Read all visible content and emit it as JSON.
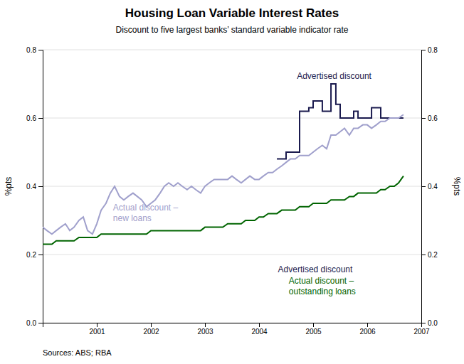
{
  "chart_data": {
    "type": "line",
    "title": "Housing Loan Variable Interest Rates",
    "subtitle": "Discount to five largest banks’ standard variable indicator rate",
    "ylabel": "%pts",
    "y2label": "%pts",
    "source": "Sources: ABS; RBA",
    "xlim": [
      2000.0,
      2007.0
    ],
    "xticks": [
      2001,
      2002,
      2003,
      2004,
      2005,
      2006,
      2007
    ],
    "ylim": [
      0.0,
      0.8
    ],
    "yticks": [
      {
        "value": 0.0,
        "label": "0.0"
      },
      0.2,
      0.4,
      0.6,
      0.8
    ],
    "y2lim": [
      0.0,
      0.8
    ],
    "y2ticks": [
      {
        "value": 0.0,
        "label": "0.0"
      },
      0.2,
      0.4,
      0.6,
      0.8
    ],
    "grid": true,
    "legend": false,
    "series": [
      {
        "name": "Advertised discount",
        "color": "#1a1a4e",
        "x": [
          2004.33,
          2004.5,
          2004.5,
          2004.75,
          2004.75,
          2004.92,
          2004.92,
          2005.0,
          2005.0,
          2005.17,
          2005.17,
          2005.33,
          2005.33,
          2005.42,
          2005.42,
          2005.5,
          2005.5,
          2005.67,
          2005.67,
          2005.75,
          2005.75,
          2005.83,
          2005.83,
          2005.92,
          2005.92,
          2006.08,
          2006.08,
          2006.25,
          2006.25,
          2006.33,
          2006.33,
          2006.42,
          2006.42,
          2006.58,
          2006.58,
          2006.67
        ],
        "values": [
          0.48,
          0.48,
          0.5,
          0.5,
          0.62,
          0.62,
          0.63,
          0.63,
          0.65,
          0.65,
          0.62,
          0.62,
          0.7,
          0.7,
          0.64,
          0.64,
          0.6,
          0.6,
          0.6,
          0.6,
          0.62,
          0.62,
          0.6,
          0.6,
          0.6,
          0.6,
          0.63,
          0.63,
          0.6,
          0.6,
          0.6,
          0.6,
          0.6,
          0.6,
          0.6,
          0.6
        ]
      },
      {
        "name": "Actual discount –\nnew loans",
        "color": "#a0a0cc",
        "x": [
          2000.0,
          2000.08,
          2000.17,
          2000.25,
          2000.33,
          2000.42,
          2000.5,
          2000.58,
          2000.67,
          2000.75,
          2000.83,
          2000.92,
          2001.0,
          2001.08,
          2001.17,
          2001.25,
          2001.33,
          2001.42,
          2001.5,
          2001.58,
          2001.67,
          2001.75,
          2001.83,
          2001.92,
          2002.0,
          2002.08,
          2002.17,
          2002.25,
          2002.33,
          2002.42,
          2002.5,
          2002.58,
          2002.67,
          2002.75,
          2002.83,
          2002.92,
          2003.0,
          2003.08,
          2003.17,
          2003.25,
          2003.33,
          2003.42,
          2003.5,
          2003.58,
          2003.67,
          2003.75,
          2003.83,
          2003.92,
          2004.0,
          2004.08,
          2004.17,
          2004.25,
          2004.33,
          2004.42,
          2004.5,
          2004.58,
          2004.67,
          2004.75,
          2004.83,
          2004.92,
          2005.0,
          2005.08,
          2005.17,
          2005.25,
          2005.33,
          2005.42,
          2005.5,
          2005.58,
          2005.67,
          2005.75,
          2005.83,
          2005.92,
          2006.0,
          2006.08,
          2006.17,
          2006.25,
          2006.33,
          2006.42,
          2006.5,
          2006.58,
          2006.67
        ],
        "values": [
          0.28,
          0.27,
          0.26,
          0.27,
          0.28,
          0.29,
          0.27,
          0.28,
          0.3,
          0.31,
          0.27,
          0.26,
          0.29,
          0.33,
          0.35,
          0.38,
          0.4,
          0.37,
          0.36,
          0.37,
          0.38,
          0.37,
          0.36,
          0.34,
          0.35,
          0.36,
          0.38,
          0.4,
          0.41,
          0.4,
          0.41,
          0.4,
          0.39,
          0.4,
          0.39,
          0.38,
          0.4,
          0.41,
          0.42,
          0.42,
          0.42,
          0.42,
          0.43,
          0.42,
          0.41,
          0.42,
          0.43,
          0.42,
          0.42,
          0.43,
          0.44,
          0.44,
          0.45,
          0.46,
          0.47,
          0.48,
          0.48,
          0.49,
          0.49,
          0.49,
          0.5,
          0.51,
          0.52,
          0.51,
          0.55,
          0.55,
          0.56,
          0.57,
          0.55,
          0.57,
          0.57,
          0.58,
          0.58,
          0.57,
          0.58,
          0.59,
          0.59,
          0.6,
          0.6,
          0.6,
          0.61
        ]
      },
      {
        "name": "Actual discount –\noutstanding loans",
        "color": "#006400",
        "x": [
          2000.0,
          2000.08,
          2000.17,
          2000.25,
          2000.33,
          2000.42,
          2000.5,
          2000.58,
          2000.67,
          2000.75,
          2000.83,
          2000.92,
          2001.0,
          2001.08,
          2001.17,
          2001.25,
          2001.33,
          2001.42,
          2001.5,
          2001.58,
          2001.67,
          2001.75,
          2001.83,
          2001.92,
          2002.0,
          2002.08,
          2002.17,
          2002.25,
          2002.33,
          2002.42,
          2002.5,
          2002.58,
          2002.67,
          2002.75,
          2002.83,
          2002.92,
          2003.0,
          2003.08,
          2003.17,
          2003.25,
          2003.33,
          2003.42,
          2003.5,
          2003.58,
          2003.67,
          2003.75,
          2003.83,
          2003.92,
          2004.0,
          2004.08,
          2004.17,
          2004.25,
          2004.33,
          2004.42,
          2004.5,
          2004.58,
          2004.67,
          2004.75,
          2004.83,
          2004.92,
          2005.0,
          2005.08,
          2005.17,
          2005.25,
          2005.33,
          2005.42,
          2005.5,
          2005.58,
          2005.67,
          2005.75,
          2005.83,
          2005.92,
          2006.0,
          2006.08,
          2006.17,
          2006.25,
          2006.33,
          2006.42,
          2006.5,
          2006.58,
          2006.67
        ],
        "values": [
          0.23,
          0.23,
          0.23,
          0.24,
          0.24,
          0.24,
          0.24,
          0.24,
          0.25,
          0.25,
          0.25,
          0.25,
          0.25,
          0.26,
          0.26,
          0.26,
          0.26,
          0.26,
          0.26,
          0.26,
          0.26,
          0.26,
          0.26,
          0.26,
          0.27,
          0.27,
          0.27,
          0.27,
          0.27,
          0.27,
          0.27,
          0.27,
          0.27,
          0.27,
          0.27,
          0.27,
          0.28,
          0.28,
          0.28,
          0.28,
          0.28,
          0.29,
          0.29,
          0.29,
          0.29,
          0.3,
          0.3,
          0.3,
          0.31,
          0.31,
          0.32,
          0.32,
          0.32,
          0.33,
          0.33,
          0.33,
          0.33,
          0.34,
          0.34,
          0.34,
          0.35,
          0.35,
          0.35,
          0.35,
          0.36,
          0.36,
          0.36,
          0.36,
          0.37,
          0.37,
          0.38,
          0.38,
          0.38,
          0.38,
          0.38,
          0.39,
          0.39,
          0.4,
          0.4,
          0.41,
          0.43
        ]
      }
    ],
    "annotations": [
      {
        "text": "Actual discount –\nnew loans",
        "x": 2001.3,
        "y": 0.32
      },
      {
        "text": "Advertised discount",
        "x": 2004.35,
        "y": 0.155
      },
      {
        "text": "Actual discount –\noutstanding loans",
        "x": 2004.55,
        "y": 0.105
      },
      {
        "text": "Advertised discount",
        "x": 2004.7,
        "y": 0.72
      }
    ]
  }
}
